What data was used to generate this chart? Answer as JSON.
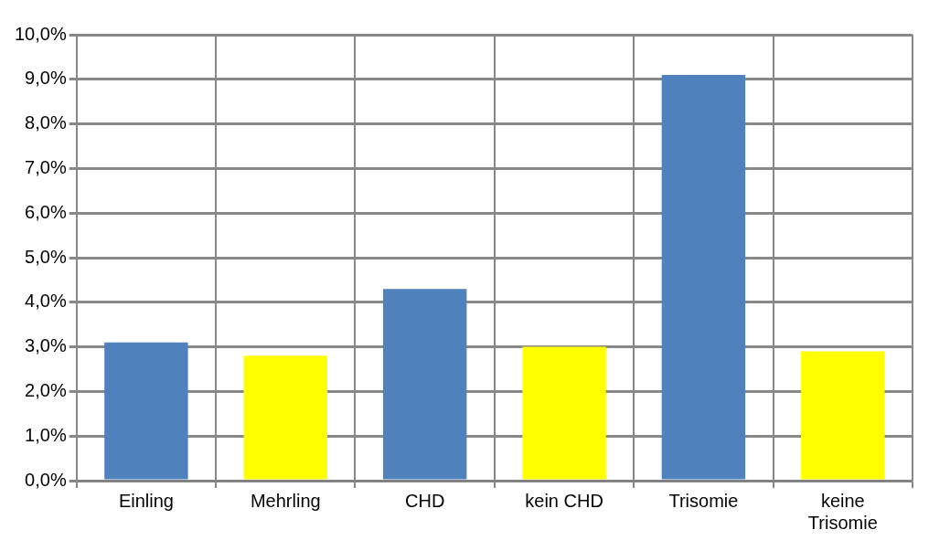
{
  "chart_data": {
    "type": "bar",
    "categories": [
      "Einling",
      "Mehrling",
      "CHD",
      "kein CHD",
      "Trisomie",
      "keine Trisomie"
    ],
    "values": [
      3.1,
      2.8,
      4.3,
      3.0,
      9.1,
      2.9
    ],
    "colors": [
      "#4f81bd",
      "#ffff00",
      "#4f81bd",
      "#ffff00",
      "#4f81bd",
      "#ffff00"
    ],
    "ylim": [
      0,
      10
    ],
    "yticks": [
      {
        "value": 0,
        "label": "0,0%"
      },
      {
        "value": 1,
        "label": "1,0%"
      },
      {
        "value": 2,
        "label": "2,0%"
      },
      {
        "value": 3,
        "label": "3,0%"
      },
      {
        "value": 4,
        "label": "4,0%"
      },
      {
        "value": 5,
        "label": "5,0%"
      },
      {
        "value": 6,
        "label": "6,0%"
      },
      {
        "value": 7,
        "label": "7,0%"
      },
      {
        "value": 8,
        "label": "8,0%"
      },
      {
        "value": 9,
        "label": "9,0%"
      },
      {
        "value": 10,
        "label": "10,0%"
      }
    ],
    "grid": true
  }
}
